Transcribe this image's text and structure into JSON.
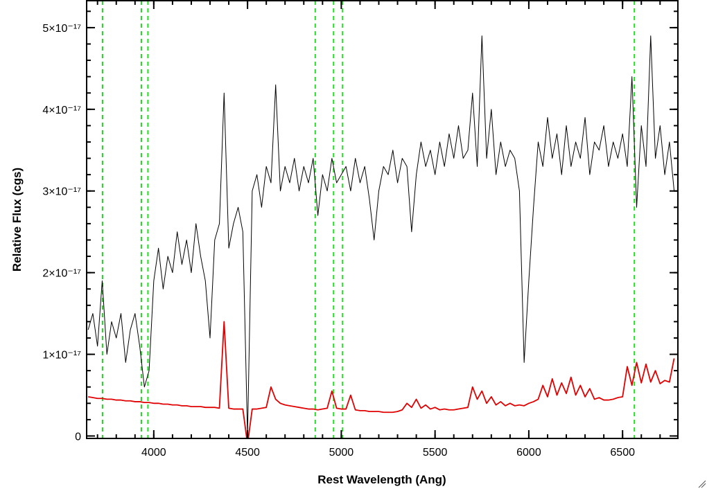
{
  "chart_data": {
    "type": "line",
    "xlabel": "Rest Wavelength (Ang)",
    "ylabel": "Relative Flux (cgs)",
    "xlim": [
      3642,
      6795
    ],
    "ylim": [
      -3e-19,
      5.33e-17
    ],
    "xticks": [
      4000,
      4500,
      5000,
      5500,
      6000,
      6500
    ],
    "xminorticks": [
      3700,
      3800,
      3900,
      4000,
      4100,
      4200,
      4300,
      4400,
      4500,
      4600,
      4700,
      4800,
      4900,
      5000,
      5100,
      5200,
      5300,
      5400,
      5500,
      5600,
      5700,
      5800,
      5900,
      6000,
      6100,
      6200,
      6300,
      6400,
      6500,
      6600,
      6700
    ],
    "yticks": [
      0,
      {
        "value": 1e-17,
        "label": "1×10⁻¹⁷"
      },
      {
        "value": 2e-17,
        "label": "2×10⁻¹⁷"
      },
      {
        "value": 3e-17,
        "label": "3×10⁻¹⁷"
      },
      {
        "value": 4e-17,
        "label": "4×10⁻¹⁷"
      },
      {
        "value": 5e-17,
        "label": "5×10⁻¹⁷"
      }
    ],
    "yminorticks": [
      0,
      2e-18,
      4e-18,
      6e-18,
      8e-18,
      1e-17,
      1.2e-17,
      1.4e-17,
      1.6e-17,
      1.8e-17,
      2e-17,
      2.2e-17,
      2.4e-17,
      2.6e-17,
      2.8e-17,
      3e-17,
      3.2e-17,
      3.4e-17,
      3.6e-17,
      3.8e-17,
      4e-17,
      4.2e-17,
      4.4e-17,
      4.6e-17,
      4.8e-17,
      5e-17,
      5.2e-17
    ],
    "lines": [
      3727,
      3934,
      3969,
      4861,
      4959,
      5007,
      6563
    ],
    "lines_color": "#22dd22",
    "x": [
      3650,
      3675,
      3700,
      3725,
      3750,
      3775,
      3800,
      3825,
      3850,
      3875,
      3900,
      3925,
      3950,
      3975,
      4000,
      4025,
      4050,
      4075,
      4100,
      4125,
      4150,
      4175,
      4200,
      4225,
      4250,
      4275,
      4300,
      4325,
      4350,
      4375,
      4400,
      4425,
      4450,
      4475,
      4500,
      4525,
      4550,
      4575,
      4600,
      4625,
      4650,
      4675,
      4700,
      4725,
      4750,
      4775,
      4800,
      4825,
      4850,
      4875,
      4900,
      4925,
      4950,
      4975,
      5000,
      5025,
      5050,
      5075,
      5100,
      5125,
      5150,
      5175,
      5200,
      5225,
      5250,
      5275,
      5300,
      5325,
      5350,
      5375,
      5400,
      5425,
      5450,
      5475,
      5500,
      5525,
      5550,
      5575,
      5600,
      5625,
      5650,
      5675,
      5700,
      5725,
      5750,
      5775,
      5800,
      5825,
      5850,
      5875,
      5900,
      5925,
      5950,
      5975,
      6000,
      6025,
      6050,
      6075,
      6100,
      6125,
      6150,
      6175,
      6200,
      6225,
      6250,
      6275,
      6300,
      6325,
      6350,
      6375,
      6400,
      6425,
      6450,
      6475,
      6500,
      6525,
      6550,
      6575,
      6600,
      6625,
      6650,
      6675,
      6700,
      6725,
      6750,
      6775
    ],
    "series": [
      {
        "color": "#000000",
        "values": [
          1.3e-17,
          1.5e-17,
          1.1e-17,
          1.9e-17,
          1e-17,
          1.4e-17,
          1.2e-17,
          1.5e-17,
          9e-18,
          1.3e-17,
          1.5e-17,
          1.1e-17,
          6e-18,
          8e-18,
          1.9e-17,
          2.3e-17,
          1.8e-17,
          2.2e-17,
          2e-17,
          2.5e-17,
          2.1e-17,
          2.4e-17,
          2e-17,
          2.6e-17,
          2.2e-17,
          1.9e-17,
          1.2e-17,
          2.4e-17,
          2.6e-17,
          4.2e-17,
          2.3e-17,
          2.6e-17,
          2.8e-17,
          2.5e-17,
          0.0,
          3e-17,
          3.2e-17,
          2.8e-17,
          3.3e-17,
          3.1e-17,
          4.3e-17,
          3e-17,
          3.3e-17,
          3.1e-17,
          3.4e-17,
          3e-17,
          3.3e-17,
          3.1e-17,
          3.4e-17,
          2.7e-17,
          3.2e-17,
          3e-17,
          3.4e-17,
          3.1e-17,
          3.2e-17,
          3.3e-17,
          3e-17,
          3.4e-17,
          3.1e-17,
          3.3e-17,
          2.9e-17,
          2.4e-17,
          3e-17,
          3.3e-17,
          3.2e-17,
          3.5e-17,
          3.1e-17,
          3.4e-17,
          3.3e-17,
          2.5e-17,
          3.2e-17,
          3.6e-17,
          3.3e-17,
          3.5e-17,
          3.2e-17,
          3.6e-17,
          3.3e-17,
          3.7e-17,
          3.4e-17,
          3.8e-17,
          3.4e-17,
          3.5e-17,
          4.2e-17,
          3.3e-17,
          4.9e-17,
          3.4e-17,
          4e-17,
          3.2e-17,
          3.6e-17,
          3.3e-17,
          3.5e-17,
          3.4e-17,
          3e-17,
          9e-18,
          1.9e-17,
          2.8e-17,
          3.6e-17,
          3.3e-17,
          3.9e-17,
          3.4e-17,
          3.7e-17,
          3.2e-17,
          3.8e-17,
          3.3e-17,
          3.6e-17,
          3.4e-17,
          3.9e-17,
          3.2e-17,
          3.6e-17,
          3.5e-17,
          3.8e-17,
          3.3e-17,
          3.6e-17,
          3.4e-17,
          3.7e-17,
          3.3e-17,
          4.4e-17,
          2.8e-17,
          3.8e-17,
          3.3e-17,
          4.9e-17,
          3.4e-17,
          3.8e-17,
          3.2e-17,
          3.6e-17,
          3e-17
        ]
      },
      {
        "color": "#e00000",
        "values": [
          4.8e-18,
          4.7e-18,
          4.6e-18,
          4.6e-18,
          4.5e-18,
          4.5e-18,
          4.4e-18,
          4.4e-18,
          4.3e-18,
          4.3e-18,
          4.2e-18,
          4.2e-18,
          4.1e-18,
          4.1e-18,
          4e-18,
          4e-18,
          3.9e-18,
          3.9e-18,
          3.8e-18,
          3.8e-18,
          3.7e-18,
          3.7e-18,
          3.6e-18,
          3.6e-18,
          3.6e-18,
          3.5e-18,
          3.5e-18,
          3.5e-18,
          3.4e-18,
          1.4e-17,
          3.4e-18,
          3.3e-18,
          3.3e-18,
          3.3e-18,
          -1e-18,
          3.3e-18,
          3.3e-18,
          3.4e-18,
          3.5e-18,
          6e-18,
          4.5e-18,
          4e-18,
          3.8e-18,
          3.7e-18,
          3.6e-18,
          3.5e-18,
          3.4e-18,
          3.3e-18,
          3.3e-18,
          3.2e-18,
          3.3e-18,
          3.4e-18,
          5.5e-18,
          3.4e-18,
          3.3e-18,
          3.3e-18,
          5e-18,
          3.2e-18,
          3.1e-18,
          3.1e-18,
          3e-18,
          3e-18,
          3e-18,
          2.9e-18,
          2.9e-18,
          2.9e-18,
          3e-18,
          3.2e-18,
          4e-18,
          3.5e-18,
          4.5e-18,
          3.4e-18,
          3.8e-18,
          3.3e-18,
          3.5e-18,
          3.2e-18,
          3.3e-18,
          3.2e-18,
          3.2e-18,
          3.3e-18,
          3.4e-18,
          3.5e-18,
          6e-18,
          4.5e-18,
          5.5e-18,
          4e-18,
          4.8e-18,
          3.8e-18,
          4.2e-18,
          3.7e-18,
          4e-18,
          3.7e-18,
          3.8e-18,
          3.7e-18,
          4e-18,
          4.2e-18,
          4.5e-18,
          6.2e-18,
          4.8e-18,
          7e-18,
          5e-18,
          6.5e-18,
          5.2e-18,
          7.2e-18,
          5e-18,
          6.2e-18,
          4.8e-18,
          5.8e-18,
          4.5e-18,
          4.7e-18,
          4.4e-18,
          4.4e-18,
          4.5e-18,
          4.7e-18,
          4.8e-18,
          8.5e-18,
          6.2e-18,
          9e-18,
          6.5e-18,
          8.8e-18,
          6.6e-18,
          8e-18,
          6.4e-18,
          6.8e-18,
          6.6e-18,
          9.5e-18
        ]
      }
    ]
  }
}
